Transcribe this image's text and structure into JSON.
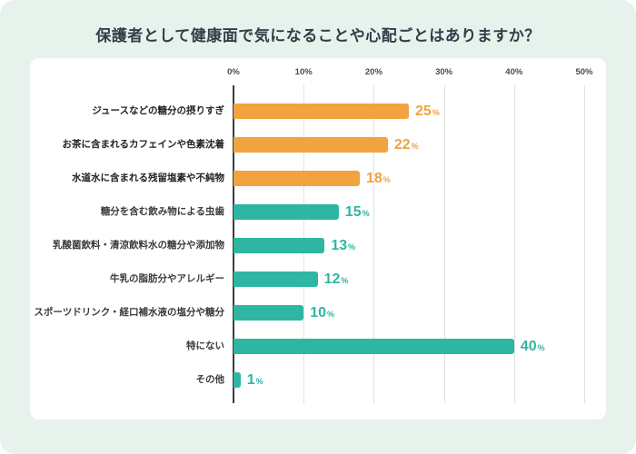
{
  "title": "保護者として健康面で気になることや心配ごとはありますか？",
  "colors": {
    "page_background": "#E7F2ED",
    "card_background": "#FFFFFF",
    "title_text": "#333D47",
    "gridline": "#E0E0E0",
    "axis": "#3C3C3C",
    "highlight": "#F0A33E",
    "base": "#2EB6A2"
  },
  "chart_data": {
    "type": "bar",
    "orientation": "horizontal",
    "title": "保護者として健康面で気になることや心配ごとはありますか？",
    "categories": [
      "ジュースなどの糖分の摂りすぎ",
      "お茶に含まれるカフェインや色素沈着",
      "水道水に含まれる残留塩素や不純物",
      "糖分を含む飲み物による虫歯",
      "乳酸菌飲料・清涼飲料水の糖分や添加物",
      "牛乳の脂肪分やアレルギー",
      "スポーツドリンク・経口補水液の塩分や糖分",
      "特にない",
      "その他"
    ],
    "values": [
      25,
      22,
      18,
      15,
      13,
      12,
      10,
      40,
      1
    ],
    "unit": "%",
    "xlim": [
      0,
      50
    ],
    "x_ticks": [
      "0%",
      "10%",
      "20%",
      "30%",
      "40%",
      "50%"
    ],
    "bar_colors": [
      "#F0A33E",
      "#F0A33E",
      "#F0A33E",
      "#2EB6A2",
      "#2EB6A2",
      "#2EB6A2",
      "#2EB6A2",
      "#2EB6A2",
      "#2EB6A2"
    ],
    "grid": true,
    "legend": false
  }
}
